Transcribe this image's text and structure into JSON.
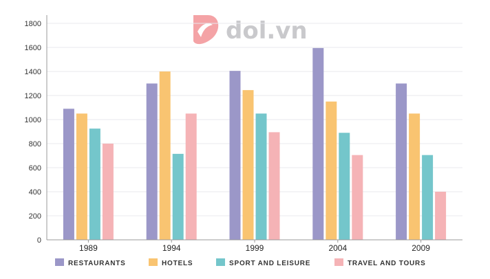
{
  "watermark": {
    "text": "dol.vn",
    "color": "#c9c9cc",
    "icon": "dol-logo-icon",
    "icon_color": "#f4a3a6"
  },
  "colors": {
    "axis": "#999999",
    "grid": "#e9e9ee",
    "series": [
      "#9b97c8",
      "#f9c471",
      "#74c6cb",
      "#f5b3b6"
    ]
  },
  "chart_data": {
    "type": "bar",
    "categories": [
      "1989",
      "1994",
      "1999",
      "2004",
      "2009"
    ],
    "series": [
      {
        "name": "RESTAURANTS",
        "values": [
          1090,
          1300,
          1405,
          1595,
          1300
        ]
      },
      {
        "name": "HOTELS",
        "values": [
          1050,
          1400,
          1245,
          1150,
          1050
        ]
      },
      {
        "name": "SPORT AND LEISURE",
        "values": [
          925,
          715,
          1050,
          890,
          705
        ]
      },
      {
        "name": "TRAVEL AND TOURS",
        "values": [
          800,
          1050,
          895,
          705,
          400
        ]
      }
    ],
    "title": "",
    "xlabel": "",
    "ylabel": "",
    "ylim": [
      0,
      1800
    ],
    "yticks": [
      0,
      200,
      400,
      600,
      800,
      1000,
      1200,
      1400,
      1600,
      1800
    ],
    "grid": true,
    "legend_position": "bottom"
  }
}
